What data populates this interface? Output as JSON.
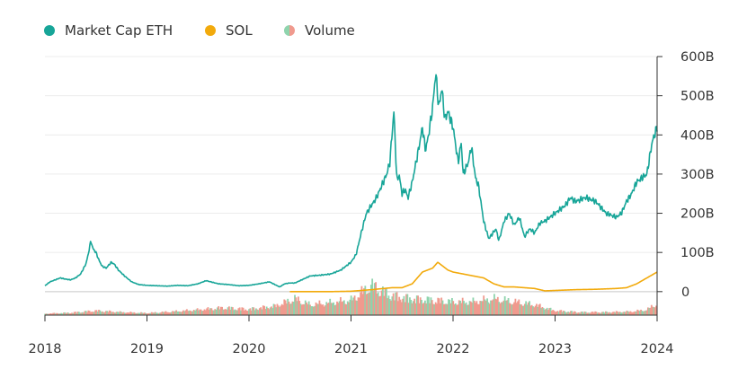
{
  "colors": {
    "eth": "#17a598",
    "sol": "#f2aa0c",
    "vol_up": "#8fd4ad",
    "vol_down": "#f09a8e",
    "grid": "#ececec",
    "axis": "#333333"
  },
  "chart_data": {
    "type": "line",
    "legend": [
      {
        "label": "Market Cap ETH",
        "marker": "dot",
        "color": "#17a598"
      },
      {
        "label": "SOL",
        "marker": "dot",
        "color": "#f2aa0c"
      },
      {
        "label": "Volume",
        "marker": "split-dot",
        "color": "#8fd4ad"
      }
    ],
    "legend_position": "top-left",
    "y_axis": {
      "side": "right",
      "ticks": [
        "600B",
        "500B",
        "400B",
        "300B",
        "200B",
        "100B",
        "0"
      ],
      "range": [
        -60,
        600
      ],
      "grid": true
    },
    "x_axis": {
      "ticks": [
        "2018",
        "2019",
        "2020",
        "2021",
        "2022",
        "2023",
        "2024"
      ],
      "range": [
        2018.0,
        2024.0
      ]
    },
    "series": [
      {
        "name": "Market Cap ETH",
        "units": "billions USD",
        "x": [
          2018.0,
          2018.05,
          2018.1,
          2018.15,
          2018.2,
          2018.25,
          2018.3,
          2018.35,
          2018.4,
          2018.42,
          2018.45,
          2018.47,
          2018.5,
          2018.53,
          2018.56,
          2018.6,
          2018.65,
          2018.68,
          2018.72,
          2018.78,
          2018.85,
          2018.92,
          2019.0,
          2019.1,
          2019.2,
          2019.3,
          2019.4,
          2019.5,
          2019.58,
          2019.7,
          2019.8,
          2019.9,
          2020.0,
          2020.1,
          2020.2,
          2020.3,
          2020.35,
          2020.4,
          2020.45,
          2020.5,
          2020.6,
          2020.7,
          2020.8,
          2020.9,
          2021.0,
          2021.05,
          2021.1,
          2021.15,
          2021.2,
          2021.25,
          2021.3,
          2021.35,
          2021.38,
          2021.42,
          2021.45,
          2021.47,
          2021.5,
          2021.53,
          2021.56,
          2021.6,
          2021.63,
          2021.66,
          2021.7,
          2021.73,
          2021.76,
          2021.8,
          2021.83,
          2021.86,
          2021.89,
          2021.92,
          2021.95,
          2022.0,
          2022.05,
          2022.08,
          2022.1,
          2022.15,
          2022.18,
          2022.22,
          2022.25,
          2022.3,
          2022.35,
          2022.42,
          2022.45,
          2022.5,
          2022.55,
          2022.6,
          2022.65,
          2022.7,
          2022.75,
          2022.8,
          2022.85,
          2022.9,
          2023.0,
          2023.05,
          2023.1,
          2023.15,
          2023.2,
          2023.3,
          2023.4,
          2023.5,
          2023.6,
          2023.65,
          2023.7,
          2023.75,
          2023.8,
          2023.85,
          2023.9,
          2023.95,
          2024.0
        ],
        "y": [
          15,
          25,
          30,
          35,
          32,
          30,
          35,
          45,
          70,
          90,
          130,
          110,
          100,
          80,
          65,
          60,
          75,
          70,
          55,
          40,
          25,
          18,
          16,
          15,
          14,
          16,
          15,
          20,
          28,
          20,
          18,
          15,
          16,
          20,
          25,
          12,
          20,
          22,
          22,
          28,
          40,
          42,
          45,
          55,
          75,
          95,
          150,
          200,
          220,
          240,
          270,
          300,
          330,
          460,
          280,
          300,
          250,
          260,
          240,
          280,
          320,
          360,
          420,
          360,
          400,
          470,
          560,
          470,
          520,
          440,
          460,
          420,
          330,
          380,
          300,
          330,
          370,
          290,
          270,
          180,
          135,
          160,
          130,
          180,
          200,
          170,
          190,
          140,
          160,
          150,
          175,
          180,
          200,
          210,
          220,
          240,
          230,
          240,
          230,
          200,
          190,
          200,
          230,
          250,
          280,
          290,
          300,
          380,
          420
        ]
      },
      {
        "name": "SOL",
        "units": "billions USD",
        "x": [
          2020.4,
          2020.6,
          2020.8,
          2021.0,
          2021.2,
          2021.4,
          2021.5,
          2021.6,
          2021.65,
          2021.7,
          2021.75,
          2021.8,
          2021.85,
          2021.9,
          2021.95,
          2022.0,
          2022.1,
          2022.2,
          2022.3,
          2022.4,
          2022.5,
          2022.6,
          2022.7,
          2022.8,
          2022.9,
          2023.0,
          2023.2,
          2023.4,
          2023.6,
          2023.7,
          2023.8,
          2023.9,
          2024.0
        ],
        "y": [
          0,
          0,
          0,
          1,
          5,
          10,
          10,
          20,
          35,
          50,
          55,
          60,
          75,
          65,
          55,
          50,
          45,
          40,
          35,
          20,
          12,
          12,
          10,
          8,
          2,
          3,
          5,
          6,
          8,
          10,
          20,
          35,
          50
        ]
      },
      {
        "name": "Volume",
        "units": "billions USD",
        "x": [
          2018.0,
          2018.25,
          2018.5,
          2018.75,
          2019.0,
          2019.25,
          2019.5,
          2019.75,
          2020.0,
          2020.25,
          2020.45,
          2020.6,
          2020.75,
          2021.0,
          2021.2,
          2021.4,
          2021.6,
          2021.8,
          2022.0,
          2022.2,
          2022.4,
          2022.6,
          2022.8,
          2023.0,
          2023.25,
          2023.5,
          2023.75,
          2023.9,
          2024.0
        ],
        "y": [
          5,
          8,
          15,
          10,
          7,
          12,
          18,
          25,
          20,
          30,
          55,
          35,
          40,
          50,
          100,
          65,
          55,
          50,
          45,
          45,
          55,
          45,
          35,
          15,
          10,
          10,
          12,
          18,
          40
        ]
      }
    ]
  }
}
